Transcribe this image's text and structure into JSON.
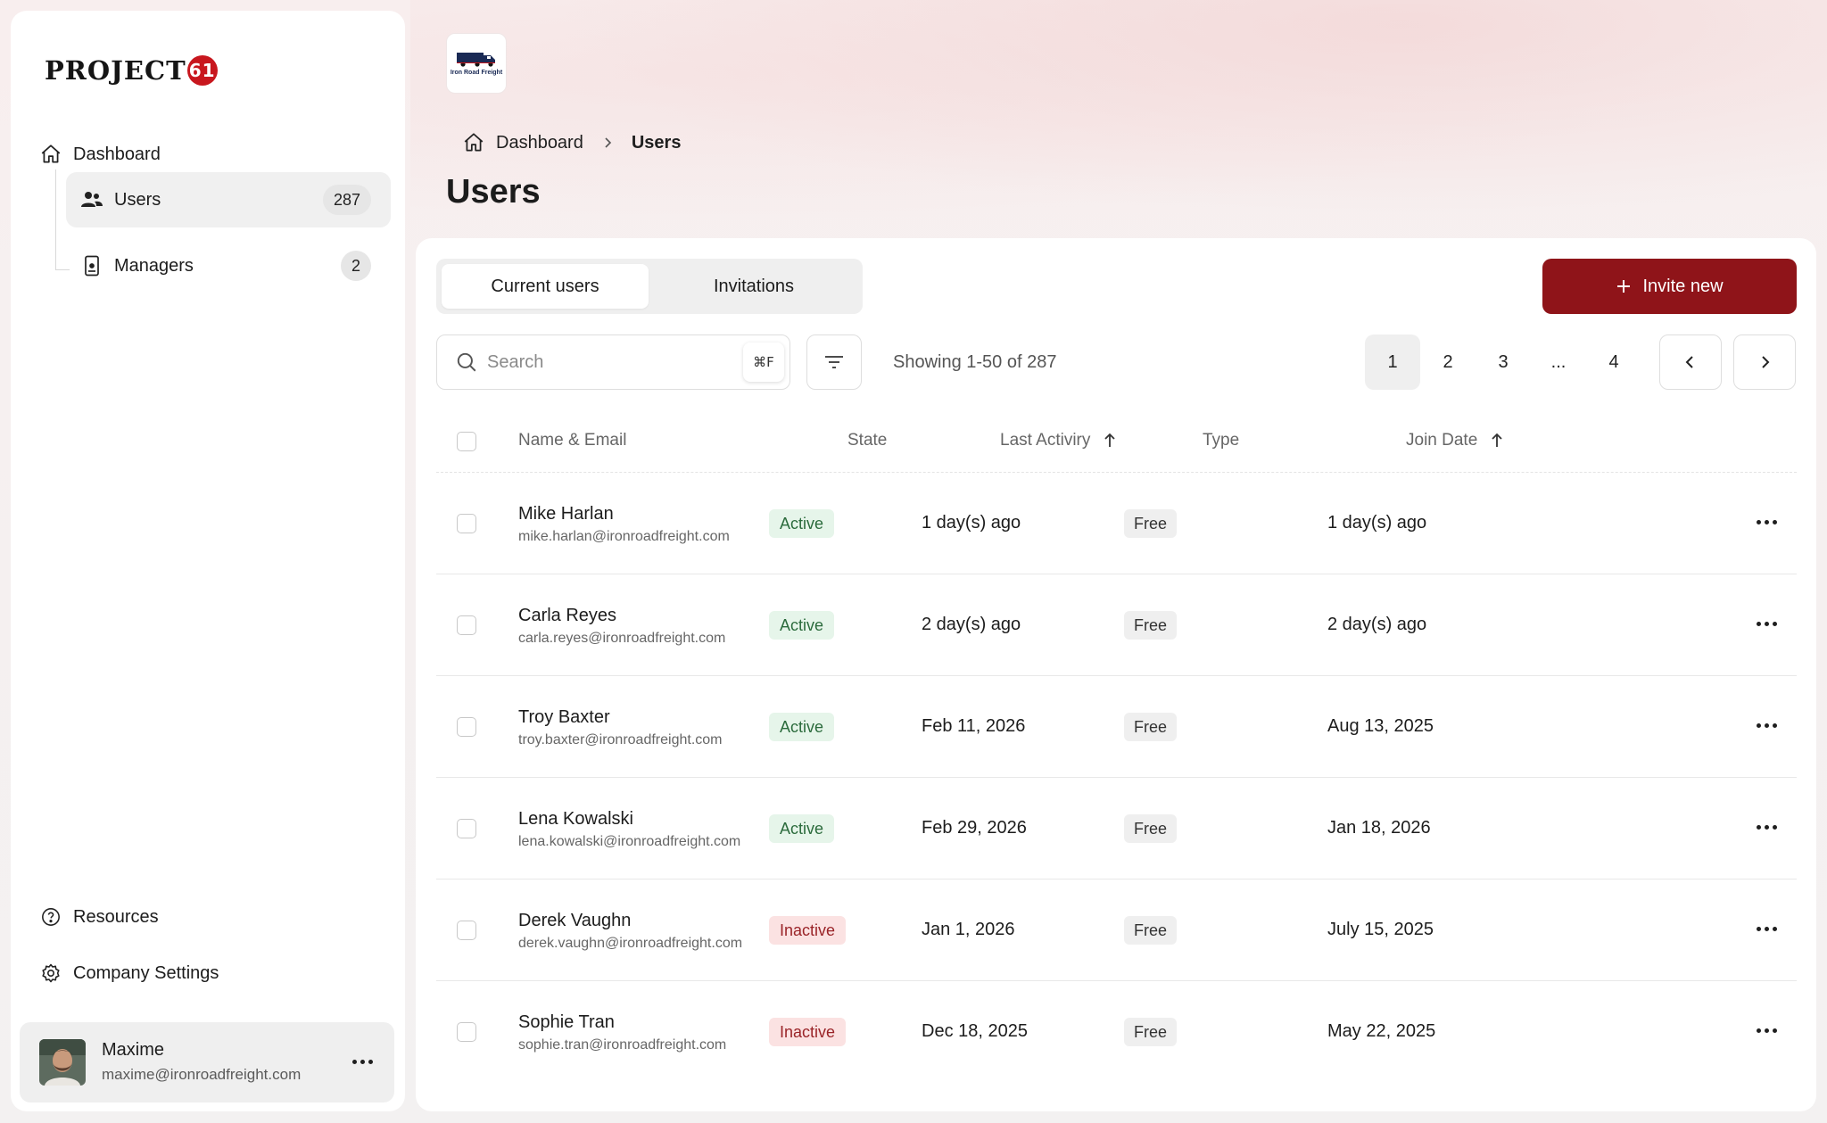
{
  "brand": {
    "logo_text": "PROJECT",
    "logo_badge": "61",
    "company_logo_text": "Iron Road Freight"
  },
  "sidebar": {
    "dashboard": "Dashboard",
    "items": [
      {
        "label": "Users",
        "count": "287",
        "icon": "users-icon"
      },
      {
        "label": "Managers",
        "count": "2",
        "icon": "tablet-icon"
      }
    ],
    "resources": "Resources",
    "company_settings": "Company Settings",
    "user": {
      "name": "Maxime",
      "email": "maxime@ironroadfreight.com"
    }
  },
  "breadcrumb": {
    "home": "Dashboard",
    "current": "Users"
  },
  "page_title": "Users",
  "tabs": [
    "Current users",
    "Invitations"
  ],
  "invite_label": "Invite new",
  "search": {
    "placeholder": "Search",
    "shortcut": "⌘F"
  },
  "showing": "Showing 1-50 of 287",
  "pagination": [
    "1",
    "2",
    "3",
    "...",
    "4"
  ],
  "columns": {
    "name": "Name & Email",
    "state": "State",
    "last_activity": "Last Activiry",
    "type": "Type",
    "join_date": "Join Date"
  },
  "rows": [
    {
      "name": "Mike Harlan",
      "email": "mike.harlan@ironroadfreight.com",
      "state": "Active",
      "last": "1 day(s) ago",
      "type": "Free",
      "join": "1 day(s) ago"
    },
    {
      "name": "Carla Reyes",
      "email": "carla.reyes@ironroadfreight.com",
      "state": "Active",
      "last": "2 day(s) ago",
      "type": "Free",
      "join": "2 day(s) ago"
    },
    {
      "name": "Troy Baxter",
      "email": "troy.baxter@ironroadfreight.com",
      "state": "Active",
      "last": "Feb 11, 2026",
      "type": "Free",
      "join": "Aug 13, 2025"
    },
    {
      "name": "Lena Kowalski",
      "email": "lena.kowalski@ironroadfreight.com",
      "state": "Active",
      "last": "Feb 29, 2026",
      "type": "Free",
      "join": "Jan 18, 2026"
    },
    {
      "name": "Derek Vaughn",
      "email": "derek.vaughn@ironroadfreight.com",
      "state": "Inactive",
      "last": "Jan 1, 2026",
      "type": "Free",
      "join": "July 15, 2025"
    },
    {
      "name": "Sophie Tran",
      "email": "sophie.tran@ironroadfreight.com",
      "state": "Inactive",
      "last": "Dec 18, 2025",
      "type": "Free",
      "join": "May 22, 2025"
    }
  ],
  "colors": {
    "accent": "#8f1419",
    "brand_red": "#c8171e",
    "active_bg": "#e6f5ea",
    "inactive_bg": "#fbe2e2"
  }
}
